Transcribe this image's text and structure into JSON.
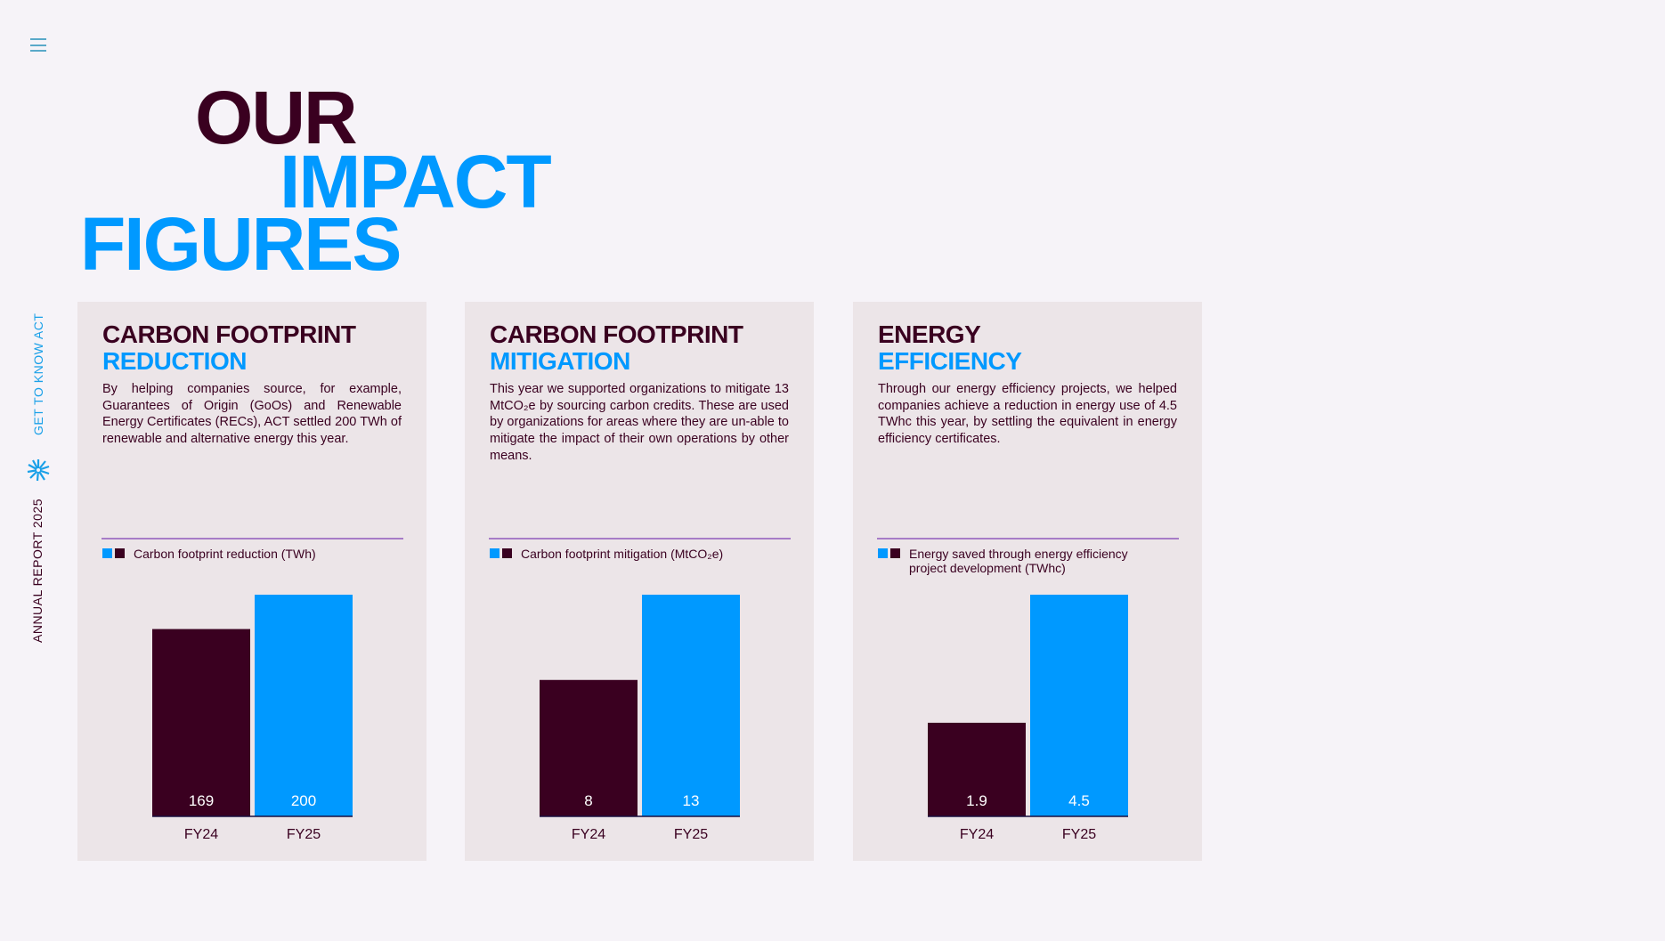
{
  "sidebar": {
    "menu_icon": "hamburger-icon",
    "vertical_top": "GET TO KNOW ACT",
    "vertical_bottom": "ANNUAL REPORT 2025",
    "logo_icon": "act-logo-icon"
  },
  "title": {
    "line1": "OUR",
    "line2": "IMPACT",
    "line3": "FIGURES"
  },
  "colors": {
    "dark": "#3a0020",
    "blue": "#0099ff",
    "card": "#ece5e8",
    "divider": "#a77cc7"
  },
  "cards": [
    {
      "title1": "CARBON FOOTPRINT",
      "title2": "REDUCTION",
      "body": "By helping companies source, for example, Guarantees of Origin (GoOs) and Renewable Energy Certificates (RECs), ACT settled 200 TWh of renewable and alternative energy this year.",
      "legend": "Carbon footprint reduction (TWh)"
    },
    {
      "title1": "CARBON FOOTPRINT",
      "title2": "MITIGATION",
      "body": "This year we supported organizations to mitigate 13 MtCO₂e by sourcing carbon credits. These are used by organizations for areas where they are un-able to mitigate the impact of their own operations by other means.",
      "legend": "Carbon footprint mitigation (MtCO₂e)"
    },
    {
      "title1": "ENERGY",
      "title2": "EFFICIENCY",
      "body": "Through our energy efficiency projects, we helped companies achieve a reduction in energy use of 4.5 TWhc this year, by settling the equivalent in energy efficiency certificates.",
      "legend": "Energy saved through energy efficiency project development (TWhc)"
    }
  ],
  "chart_data": [
    {
      "type": "bar",
      "title": "Carbon footprint reduction",
      "categories": [
        "FY24",
        "FY25"
      ],
      "values": [
        169,
        200
      ],
      "labels": [
        "169",
        "200"
      ],
      "ylabel": "TWh",
      "ylim": [
        0,
        200
      ],
      "colors": [
        "#3a0020",
        "#0099ff"
      ]
    },
    {
      "type": "bar",
      "title": "Carbon footprint mitigation",
      "categories": [
        "FY24",
        "FY25"
      ],
      "values": [
        8,
        13
      ],
      "labels": [
        "8",
        "13"
      ],
      "ylabel": "MtCO2e",
      "ylim": [
        0,
        13
      ],
      "colors": [
        "#3a0020",
        "#0099ff"
      ]
    },
    {
      "type": "bar",
      "title": "Energy efficiency",
      "categories": [
        "FY24",
        "FY25"
      ],
      "values": [
        1.9,
        4.5
      ],
      "labels": [
        "1.9",
        "4.5"
      ],
      "ylabel": "TWhc",
      "ylim": [
        0,
        4.5
      ],
      "colors": [
        "#3a0020",
        "#0099ff"
      ]
    }
  ]
}
